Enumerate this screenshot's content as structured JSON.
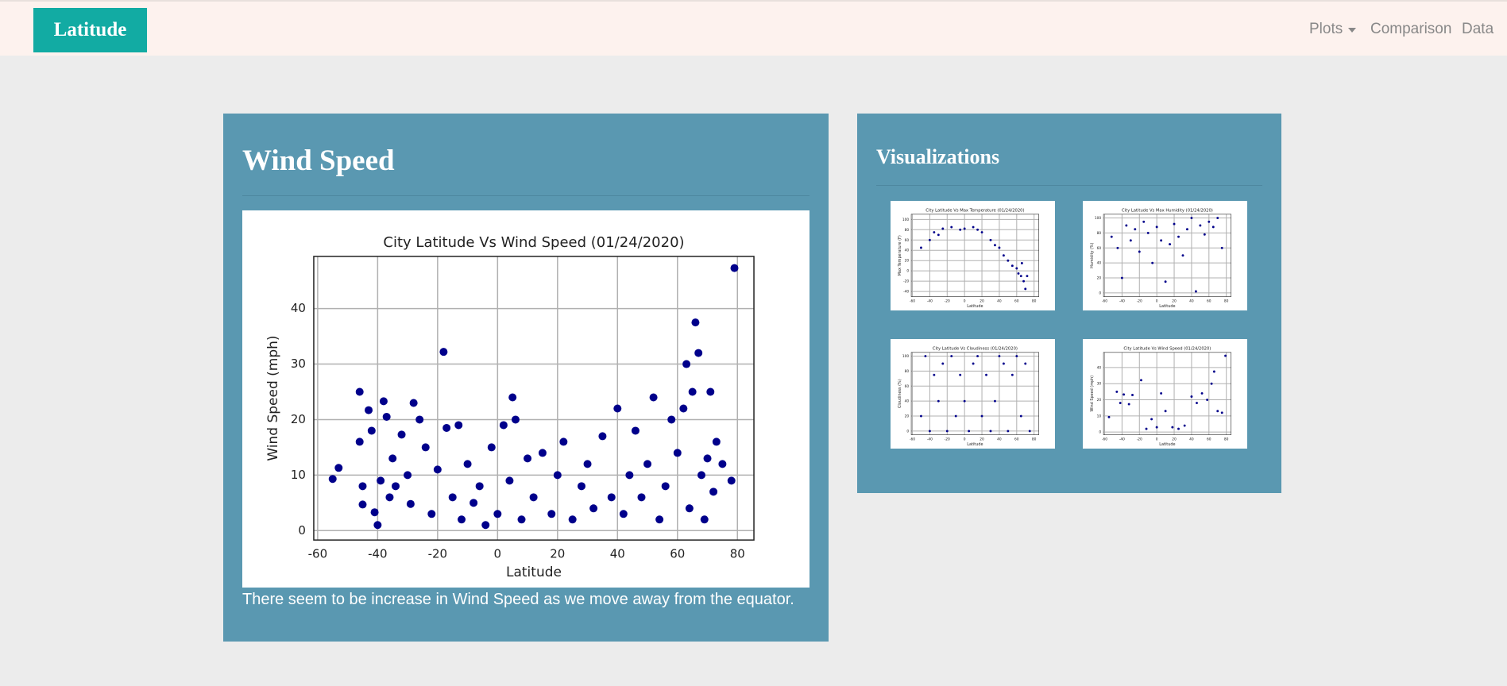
{
  "navbar": {
    "brand": "Latitude",
    "links": [
      "Plots",
      "Comparison",
      "Data"
    ]
  },
  "main": {
    "heading": "Wind Speed",
    "caption": "There seem to be increase in Wind Speed as we move away from the equator."
  },
  "sidebar": {
    "heading": "Visualizations"
  },
  "chart_data": [
    {
      "type": "scatter",
      "title": "City Latitude Vs Wind Speed (01/24/2020)",
      "xlabel": "Latitude",
      "ylabel": "Wind Speed (mph)",
      "xlim": [
        -61.3,
        85.5
      ],
      "ylim": [
        -1.7,
        49.4
      ],
      "xticks": [
        -60,
        -40,
        -20,
        0,
        20,
        40,
        60,
        80
      ],
      "yticks": [
        0,
        10,
        20,
        30,
        40
      ],
      "grid": true,
      "x": [
        -55,
        -53,
        -46,
        -46,
        -45,
        -45,
        -43,
        -42,
        -41,
        -40,
        -39,
        -38,
        -37,
        -36,
        -35,
        -34,
        -32,
        -30,
        -29,
        -28,
        -26,
        -24,
        -22,
        -20,
        -18,
        -17,
        -15,
        -13,
        -12,
        -10,
        -8,
        -6,
        -4,
        -2,
        0,
        2,
        4,
        5,
        6,
        8,
        10,
        12,
        15,
        18,
        20,
        22,
        25,
        28,
        30,
        32,
        35,
        38,
        40,
        42,
        44,
        46,
        48,
        50,
        52,
        54,
        56,
        58,
        60,
        62,
        63,
        64,
        65,
        66,
        67,
        68,
        69,
        70,
        71,
        72,
        73,
        75,
        78,
        79
      ],
      "series": [
        {
          "color": "#00008b",
          "values": [
            9.3,
            11.3,
            25,
            16,
            8,
            4.7,
            21.7,
            18,
            3.3,
            1,
            9,
            23.3,
            20.5,
            6,
            13,
            8,
            17.3,
            10,
            4.8,
            23,
            20,
            15,
            3,
            11,
            32.2,
            18.5,
            6,
            19,
            2,
            12,
            5,
            8,
            1,
            15,
            3,
            19,
            9,
            24,
            20,
            2,
            13,
            6,
            14,
            3,
            10,
            16,
            2,
            8,
            12,
            4,
            17,
            6,
            22,
            3,
            10,
            18,
            6,
            12,
            24,
            2,
            8,
            20,
            14,
            22,
            30,
            4,
            25,
            37.5,
            32,
            10,
            2,
            13,
            25,
            7,
            16,
            12,
            9,
            47.3
          ]
        }
      ]
    },
    {
      "type": "scatter",
      "title": "City Latitude Vs Max Temperature (01/24/2020)",
      "xlabel": "Latitude",
      "ylabel": "Max Temperature (F)",
      "xlim": [
        -61.3,
        85.5
      ],
      "ylim": [
        -50,
        110
      ],
      "xticks": [
        -60,
        -40,
        -20,
        0,
        20,
        40,
        60,
        80
      ],
      "yticks": [
        -40,
        -20,
        0,
        20,
        40,
        60,
        80,
        100
      ],
      "grid": true,
      "x": [
        -50,
        -40,
        -35,
        -30,
        -25,
        -15,
        -5,
        0,
        10,
        15,
        20,
        30,
        35,
        40,
        45,
        50,
        55,
        60,
        62,
        65,
        66,
        68,
        70,
        72
      ],
      "series": [
        {
          "color": "#00008b",
          "values": [
            45,
            60,
            75,
            70,
            82,
            85,
            80,
            82,
            85,
            80,
            75,
            60,
            50,
            45,
            30,
            20,
            10,
            5,
            -5,
            -10,
            15,
            -20,
            -35,
            -10
          ]
        }
      ]
    },
    {
      "type": "scatter",
      "title": "City Latitude Vs Max Humidity (01/24/2020)",
      "xlabel": "Latitude",
      "ylabel": "Humidity (%)",
      "xlim": [
        -61.3,
        85.5
      ],
      "ylim": [
        -5,
        105
      ],
      "xticks": [
        -60,
        -40,
        -20,
        0,
        20,
        40,
        60,
        80
      ],
      "yticks": [
        0,
        20,
        40,
        60,
        80,
        100
      ],
      "grid": true,
      "x": [
        -52,
        -45,
        -40,
        -35,
        -30,
        -25,
        -20,
        -15,
        -10,
        -5,
        0,
        5,
        10,
        15,
        20,
        25,
        30,
        35,
        40,
        45,
        50,
        55,
        60,
        65,
        70,
        75
      ],
      "series": [
        {
          "color": "#00008b",
          "values": [
            75,
            60,
            20,
            90,
            70,
            85,
            55,
            95,
            80,
            40,
            88,
            70,
            15,
            65,
            92,
            75,
            50,
            85,
            100,
            2,
            90,
            78,
            95,
            88,
            100,
            60
          ]
        }
      ]
    },
    {
      "type": "scatter",
      "title": "City Latitude Vs Cloudiness (01/24/2020)",
      "xlabel": "Latitude",
      "ylabel": "Cloudiness (%)",
      "xlim": [
        -61.3,
        85.5
      ],
      "ylim": [
        -5,
        105
      ],
      "xticks": [
        -60,
        -40,
        -20,
        0,
        20,
        40,
        60,
        80
      ],
      "yticks": [
        0,
        20,
        40,
        60,
        80,
        100
      ],
      "grid": true,
      "x": [
        -50,
        -45,
        -40,
        -35,
        -30,
        -25,
        -20,
        -15,
        -10,
        -5,
        0,
        5,
        10,
        15,
        20,
        25,
        30,
        35,
        40,
        45,
        50,
        55,
        60,
        65,
        70,
        75
      ],
      "series": [
        {
          "color": "#00008b",
          "values": [
            20,
            100,
            0,
            75,
            40,
            90,
            0,
            100,
            20,
            75,
            40,
            0,
            90,
            100,
            20,
            75,
            0,
            40,
            100,
            90,
            0,
            75,
            100,
            20,
            90,
            0
          ]
        }
      ]
    },
    {
      "type": "scatter",
      "title": "City Latitude Vs Wind Speed (01/24/2020)",
      "xlabel": "Latitude",
      "ylabel": "Wind Speed (mph)",
      "xlim": [
        -61.3,
        85.5
      ],
      "ylim": [
        -1.7,
        49.4
      ],
      "xticks": [
        -60,
        -40,
        -20,
        0,
        20,
        40,
        60,
        80
      ],
      "yticks": [
        0,
        10,
        20,
        30,
        40
      ],
      "grid": true,
      "x": [
        -55,
        -46,
        -42,
        -38,
        -32,
        -28,
        -18,
        -12,
        -6,
        0,
        5,
        10,
        18,
        25,
        32,
        40,
        46,
        52,
        58,
        63,
        66,
        70,
        75,
        79
      ],
      "series": [
        {
          "color": "#00008b",
          "values": [
            9.3,
            25,
            18,
            23.3,
            17.3,
            23,
            32.2,
            2,
            8,
            3,
            24,
            13,
            3,
            2,
            4,
            22,
            18,
            24,
            20,
            30,
            37.5,
            13,
            12,
            47.3
          ]
        }
      ]
    }
  ]
}
